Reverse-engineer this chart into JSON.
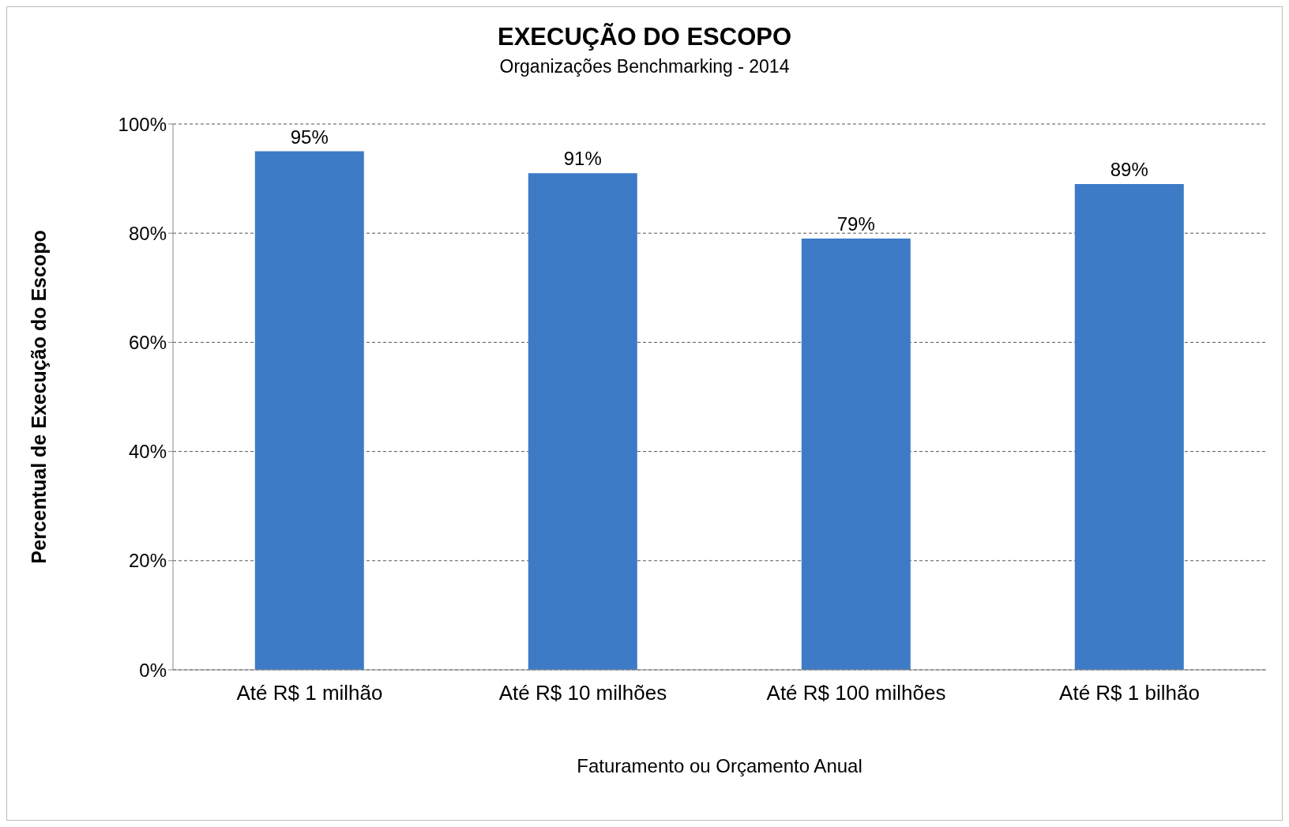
{
  "chart_data": {
    "type": "bar",
    "title": "EXECUÇÃO DO ESCOPO",
    "subtitle": "Organizações Benchmarking - 2014",
    "xlabel": "Faturamento ou Orçamento Anual",
    "ylabel": "Percentual de Execução do Escopo",
    "categories": [
      "Até R$ 1 milhão",
      "Até R$ 10 milhões",
      "Até R$ 100 milhões",
      "Até R$ 1 bilhão"
    ],
    "values": [
      95,
      91,
      79,
      89
    ],
    "value_labels": [
      "95%",
      "91%",
      "79%",
      "89%"
    ],
    "color": "#3e7bc6",
    "ylim": [
      0,
      100
    ],
    "yticks": [
      {
        "value": 0,
        "label": "0%"
      },
      {
        "value": 20,
        "label": "20%"
      },
      {
        "value": 40,
        "label": "40%"
      },
      {
        "value": 60,
        "label": "60%"
      },
      {
        "value": 80,
        "label": "80%"
      },
      {
        "value": 100,
        "label": "100%"
      }
    ],
    "grid": "y",
    "legend": false
  }
}
